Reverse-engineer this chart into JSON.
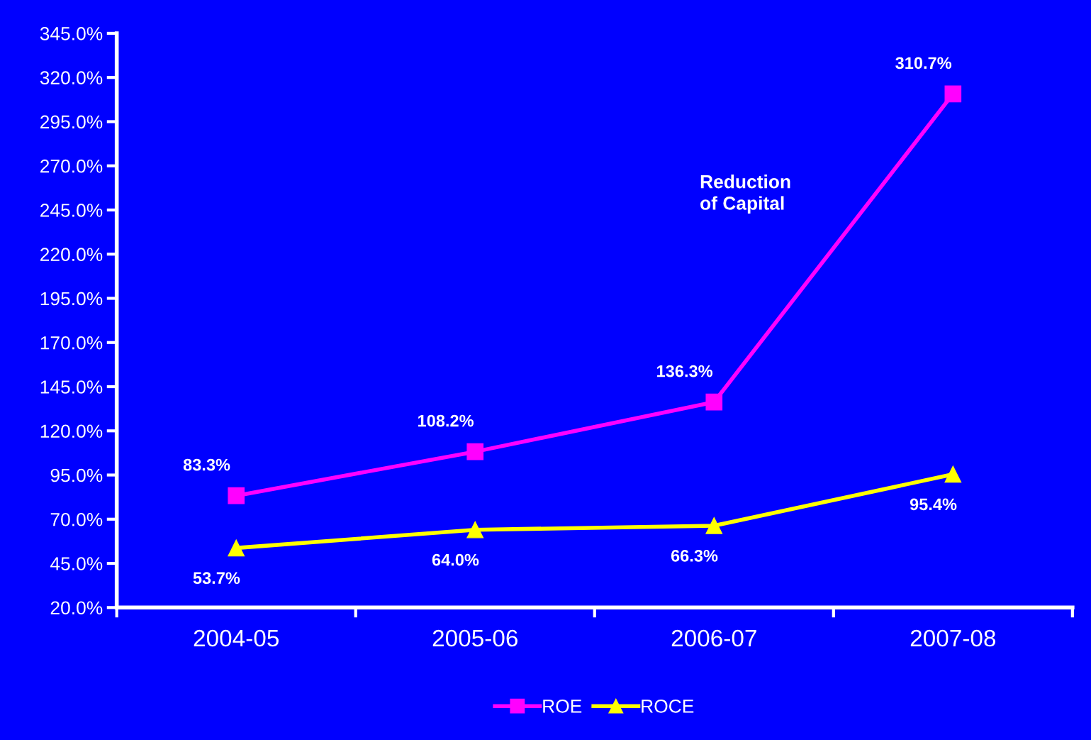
{
  "chart_data": {
    "type": "line",
    "categories": [
      "2004-05",
      "2005-06",
      "2006-07",
      "2007-08"
    ],
    "series": [
      {
        "name": "ROE",
        "color": "#ff00ff",
        "marker": "square",
        "values": [
          83.3,
          108.2,
          136.3,
          310.7
        ],
        "value_labels": [
          "83.3%",
          "108.2%",
          "136.3%",
          "310.7%"
        ]
      },
      {
        "name": "ROCE",
        "color": "#ffff00",
        "marker": "triangle",
        "values": [
          53.7,
          64.0,
          66.3,
          95.4
        ],
        "value_labels": [
          "53.7%",
          "64.0%",
          "66.3%",
          "95.4%"
        ]
      }
    ],
    "ylim": [
      20,
      345
    ],
    "yticks": [
      {
        "value": 20,
        "label": "20.0%"
      },
      {
        "value": 45,
        "label": "45.0%"
      },
      {
        "value": 70,
        "label": "70.0%"
      },
      {
        "value": 95,
        "label": "95.0%"
      },
      {
        "value": 120,
        "label": "120.0%"
      },
      {
        "value": 145,
        "label": "145.0%"
      },
      {
        "value": 170,
        "label": "170.0%"
      },
      {
        "value": 195,
        "label": "195.0%"
      },
      {
        "value": 220,
        "label": "220.0%"
      },
      {
        "value": 245,
        "label": "245.0%"
      },
      {
        "value": 270,
        "label": "270.0%"
      },
      {
        "value": 295,
        "label": "295.0%"
      },
      {
        "value": 320,
        "label": "320.0%"
      },
      {
        "value": 345,
        "label": "345.0%"
      }
    ],
    "annotations": [
      "Reduction\nof Capital"
    ],
    "grid": false,
    "legend": "bottom",
    "line_style": "solid"
  }
}
